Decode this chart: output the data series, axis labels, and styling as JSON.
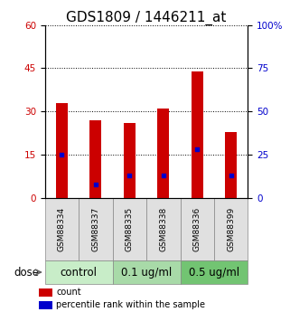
{
  "title": "GDS1809 / 1446211_at",
  "samples": [
    "GSM88334",
    "GSM88337",
    "GSM88335",
    "GSM88338",
    "GSM88336",
    "GSM88399"
  ],
  "counts": [
    33,
    27,
    26,
    31,
    44,
    23
  ],
  "percentile_ranks": [
    25,
    8,
    13,
    13,
    28,
    13
  ],
  "groups": [
    {
      "label": "control",
      "indices": [
        0,
        1
      ],
      "color": "#c8edc8"
    },
    {
      "label": "0.1 ug/ml",
      "indices": [
        2,
        3
      ],
      "color": "#a8daa8"
    },
    {
      "label": "0.5 ug/ml",
      "indices": [
        4,
        5
      ],
      "color": "#72c472"
    }
  ],
  "dose_label": "dose",
  "ylim_left": [
    0,
    60
  ],
  "ylim_right": [
    0,
    100
  ],
  "yticks_left": [
    0,
    15,
    30,
    45,
    60
  ],
  "yticks_right": [
    0,
    25,
    50,
    75,
    100
  ],
  "yticklabels_right": [
    "0",
    "25",
    "50",
    "75",
    "100%"
  ],
  "bar_color": "#cc0000",
  "dot_color": "#0000cc",
  "bar_width": 0.35,
  "grid_color": "#000000",
  "legend_count_label": "count",
  "legend_percentile_label": "percentile rank within the sample",
  "title_fontsize": 11,
  "tick_fontsize": 7.5,
  "sample_fontsize": 6.5,
  "group_label_fontsize": 8.5,
  "dose_fontsize": 8.5,
  "bg_color": "#e0e0e0"
}
